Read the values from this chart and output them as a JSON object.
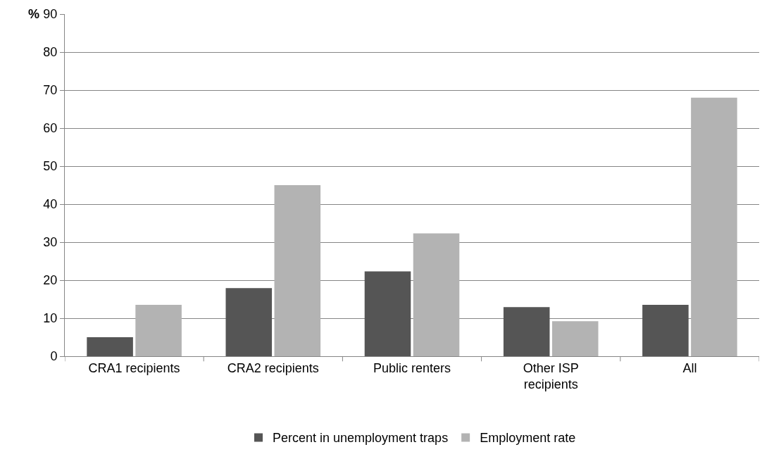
{
  "chart_data": {
    "type": "bar",
    "ylabel": "%",
    "categories": [
      "CRA1 recipients",
      "CRA2 recipients",
      "Public renters",
      "Other ISP recipients",
      "All"
    ],
    "series": [
      {
        "name": "Percent in unemployment traps",
        "color": "#555555",
        "values": [
          5,
          17.9,
          22.3,
          12.9,
          13.5
        ]
      },
      {
        "name": "Employment rate",
        "color": "#b3b3b3",
        "values": [
          13.5,
          45,
          32.3,
          9.2,
          68
        ]
      }
    ],
    "ylim": [
      0,
      90
    ],
    "yticks": [
      0,
      10,
      20,
      30,
      40,
      50,
      60,
      70,
      80,
      90
    ],
    "grid": "y",
    "legend": "bottom"
  }
}
